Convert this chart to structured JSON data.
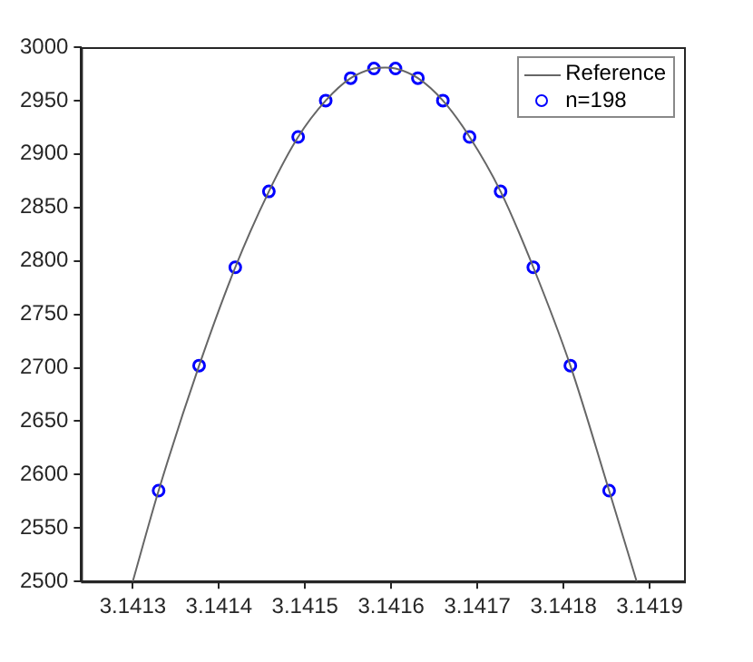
{
  "chart_data": {
    "type": "line",
    "xlim": [
      3.14124,
      3.14194
    ],
    "xticks": [
      3.1413,
      3.1414,
      3.1415,
      3.1416,
      3.1417,
      3.1418,
      3.1419
    ],
    "ylim": [
      2500,
      3000
    ],
    "yticks": [
      2500,
      2550,
      2600,
      2650,
      2700,
      2750,
      2800,
      2850,
      2900,
      2950,
      3000
    ],
    "grid": false,
    "legend": "top right",
    "series": [
      {
        "name": "Reference",
        "color": "#666666",
        "marker": "none",
        "x": [
          3.1413,
          3.14133,
          3.141377,
          3.141419,
          3.141458,
          3.141492,
          3.141524,
          3.141553,
          3.14158,
          3.141593,
          3.141605,
          3.141631,
          3.14166,
          3.141691,
          3.141727,
          3.141765,
          3.141808,
          3.141853,
          3.141885
        ],
        "values": [
          2500,
          2585,
          2702,
          2794,
          2865,
          2916,
          2950,
          2971,
          2980,
          2981,
          2980,
          2971,
          2950,
          2916,
          2865,
          2794,
          2702,
          2585,
          2500
        ]
      },
      {
        "name": "n=198",
        "type": "scatter",
        "color": "#0000ff",
        "marker": "circle",
        "x": [
          3.14133,
          3.141377,
          3.141419,
          3.141458,
          3.141492,
          3.141524,
          3.141553,
          3.14158,
          3.141605,
          3.141631,
          3.14166,
          3.141691,
          3.141727,
          3.141765,
          3.141808,
          3.141853
        ],
        "values": [
          2585,
          2702,
          2794,
          2865,
          2916,
          2950,
          2971,
          2980,
          2980,
          2971,
          2950,
          2916,
          2865,
          2794,
          2702,
          2585
        ]
      }
    ]
  }
}
